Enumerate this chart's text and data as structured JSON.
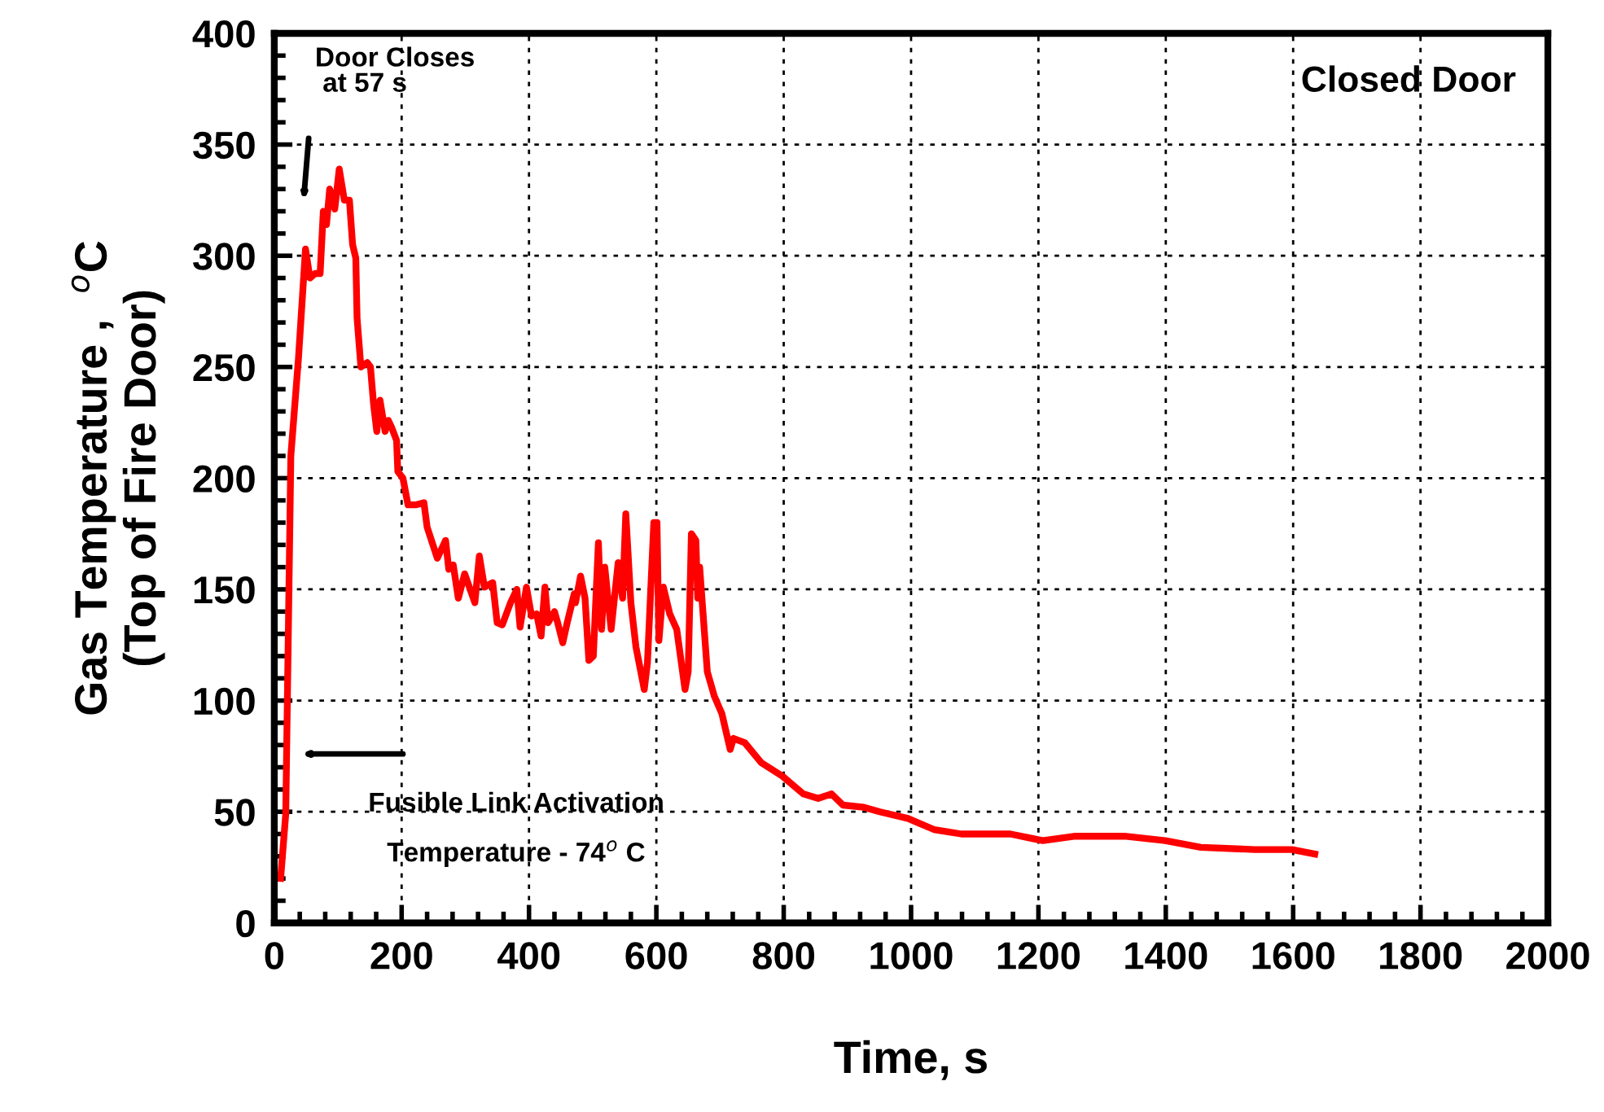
{
  "chart_data": {
    "type": "line",
    "xlabel": "Time, s",
    "ylabel": "Gas Temperature ,  $^{o}$C\n(Top of Fire Door)",
    "xlim": [
      0,
      2000
    ],
    "xticks": [
      0,
      200,
      400,
      600,
      800,
      1000,
      1200,
      1400,
      1600,
      1800,
      2000
    ],
    "ylim": [
      0,
      400
    ],
    "yticks": [
      0,
      50,
      100,
      150,
      200,
      250,
      300,
      350,
      400
    ],
    "grid": true,
    "legend": false,
    "marker": "none",
    "line_style": "solid",
    "annotations": [
      "Door Closes\n at 57 s",
      "Fusible Link Activation\nTemperature - 74$^{o}$ C",
      "Closed Door"
    ],
    "series": [
      {
        "color": "#ff0000",
        "x": [
          10,
          18,
          26,
          38,
          49,
          56,
          64,
          72,
          77,
          82,
          87,
          95,
          102,
          110,
          118,
          123,
          128,
          130,
          136,
          146,
          151,
          156,
          161,
          166,
          174,
          179,
          184,
          192,
          194,
          202,
          210,
          222,
          235,
          240,
          248,
          256,
          269,
          274,
          281,
          289,
          299,
          315,
          322,
          330,
          343,
          350,
          358,
          371,
          381,
          386,
          396,
          404,
          412,
          419,
          425,
          430,
          440,
          445,
          453,
          460,
          471,
          473,
          481,
          488,
          494,
          501,
          509,
          514,
          519,
          529,
          540,
          547,
          552,
          560,
          568,
          581,
          586,
          596,
          601,
          604,
          611,
          621,
          632,
          645,
          650,
          655,
          662,
          665,
          668,
          680,
          691,
          703,
          716,
          721,
          739,
          765,
          798,
          831,
          854,
          875,
          893,
          926,
          951,
          995,
          1036,
          1079,
          1123,
          1156,
          1207,
          1258,
          1335,
          1399,
          1455,
          1540,
          1598,
          1634
        ],
        "values": [
          20,
          49,
          210,
          254,
          303,
          290,
          292,
          292,
          320,
          314,
          330,
          321,
          339,
          325,
          325,
          305,
          299,
          272,
          250,
          252,
          250,
          233,
          221,
          235,
          221,
          226,
          223,
          217,
          203,
          200,
          188,
          188,
          189,
          178,
          171,
          164,
          172,
          159,
          161,
          146,
          157,
          144,
          165,
          151,
          153,
          135,
          134,
          144,
          150,
          133,
          151,
          138,
          139,
          129,
          151,
          135,
          140,
          135,
          126,
          135,
          148,
          144,
          156,
          146,
          118,
          120,
          171,
          132,
          160,
          132,
          162,
          146,
          184,
          144,
          124,
          105,
          117,
          180,
          180,
          127,
          151,
          139,
          132,
          105,
          113,
          175,
          172,
          146,
          160,
          113,
          102,
          94,
          78,
          83,
          81,
          72,
          66,
          58,
          56,
          58,
          53,
          52,
          50,
          47,
          42,
          40,
          40,
          40,
          37,
          39,
          39,
          37,
          34,
          33,
          33,
          31
        ]
      }
    ]
  }
}
